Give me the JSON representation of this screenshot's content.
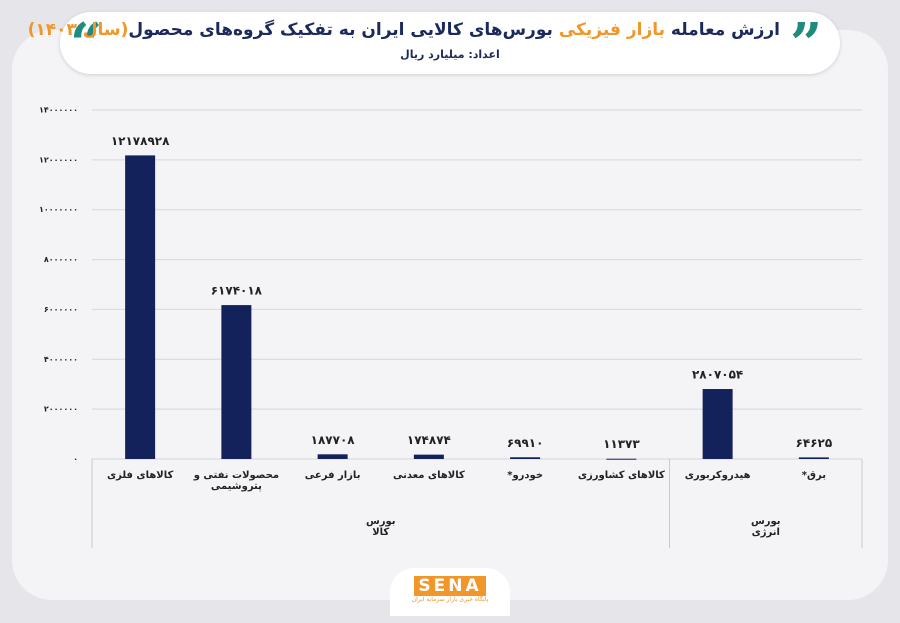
{
  "chart_data": {
    "type": "bar",
    "title_parts": [
      {
        "text": "ارزش معامله ",
        "color": "#1b2a5c"
      },
      {
        "text": "بازار فیزیکی",
        "color": "#f0962a"
      },
      {
        "text": " بورس‌های کالایی ایران به تفکیک گروه‌های محصول",
        "color": "#1b2a5c"
      },
      {
        "text": "(سال ۱۴۰۳)",
        "color": "#f0962a"
      }
    ],
    "subtitle": "اعداد: میلیارد ریال",
    "categories": [
      "کالاهای فلزی",
      "محصولات نفتی و پتروشیمی",
      "بازار فرعی",
      "کالاهای معدنی",
      "خودرو*",
      "کالاهای کشاورزی",
      "هیدروکربوری",
      "برق*"
    ],
    "values": [
      12178928,
      6174018,
      187708,
      174874,
      69910,
      11373,
      2807054,
      64625
    ],
    "value_labels": [
      "۱۲۱۷۸۹۲۸",
      "۶۱۷۴۰۱۸",
      "۱۸۷۷۰۸",
      "۱۷۴۸۷۴",
      "۶۹۹۱۰",
      "۱۱۳۷۳",
      "۲۸۰۷۰۵۴",
      "۶۴۶۲۵"
    ],
    "groups": [
      "بورس کالا",
      "بورس انرژی"
    ],
    "color": "#14225c",
    "ylim": [
      0,
      14000000
    ],
    "yticks": [
      {
        "value": 0,
        "label": "۰"
      },
      {
        "value": 2000000,
        "label": "۲۰۰۰۰۰۰"
      },
      {
        "value": 4000000,
        "label": "۴۰۰۰۰۰۰"
      },
      {
        "value": 6000000,
        "label": "۶۰۰۰۰۰۰"
      },
      {
        "value": 8000000,
        "label": "۸۰۰۰۰۰۰"
      },
      {
        "value": 10000000,
        "label": "۱۰۰۰۰۰۰۰"
      },
      {
        "value": 12000000,
        "label": "۱۲۰۰۰۰۰۰"
      },
      {
        "value": 14000000,
        "label": "۱۴۰۰۰۰۰۰"
      }
    ],
    "grid": true,
    "logo": "SENA",
    "logo_tagline": "پایگاه خبری بازار سرمایه ایران"
  }
}
